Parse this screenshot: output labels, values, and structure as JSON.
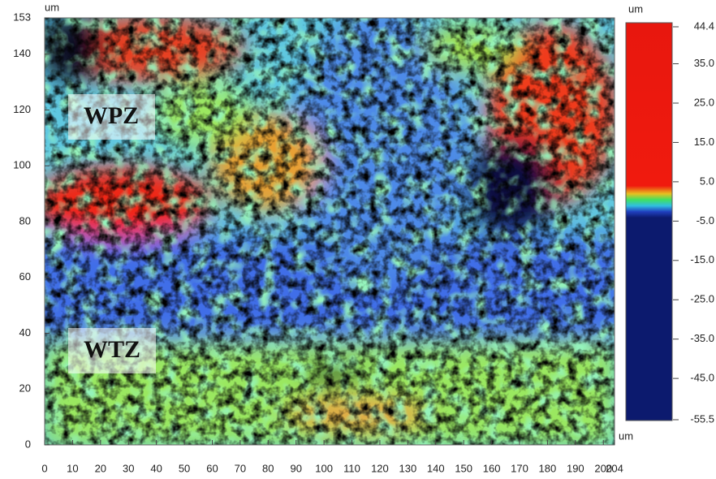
{
  "chart_data": {
    "type": "heatmap",
    "x_unit": "um",
    "y_unit": "um",
    "xlim": [
      0,
      204
    ],
    "xticks": [
      0,
      10,
      20,
      30,
      40,
      50,
      60,
      70,
      80,
      90,
      100,
      110,
      120,
      130,
      140,
      150,
      160,
      170,
      180,
      190,
      200,
      204
    ],
    "ylim": [
      0,
      153
    ],
    "yticks": [
      0,
      20,
      40,
      60,
      80,
      100,
      120,
      140,
      153
    ],
    "colorbar": {
      "unit": "um",
      "lim": [
        -55.5,
        44.4
      ],
      "ticks": [
        44.4,
        {
          "value": 35,
          "label": "35.0"
        },
        {
          "value": 25,
          "label": "25.0"
        },
        {
          "value": 15,
          "label": "15.0"
        },
        {
          "value": 5,
          "label": "5.0"
        },
        {
          "value": -5,
          "label": "-5.0"
        },
        {
          "value": -15,
          "label": "-15.0"
        },
        {
          "value": -25,
          "label": "-25.0"
        },
        {
          "value": -35,
          "label": "-35.0"
        },
        {
          "value": -45,
          "label": "-45.0"
        },
        -55.5
      ]
    },
    "annotations": [
      "WPZ",
      "WTZ"
    ]
  }
}
